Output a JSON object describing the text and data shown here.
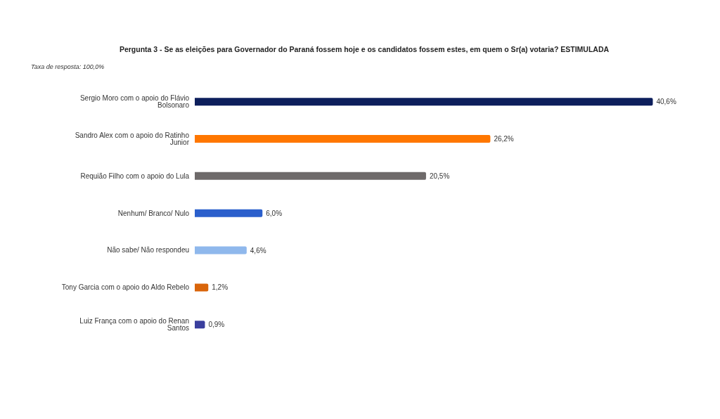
{
  "chart_data": {
    "type": "bar",
    "orientation": "horizontal",
    "title": "Pergunta 3 - Se as eleições para Governador do Paraná fossem hoje e os candidatos fossem estes, em quem o Sr(a) votaria? ESTIMULADA",
    "annotations": [
      "Taxa de resposta: 100,0%"
    ],
    "categories": [
      "Sergio Moro com o apoio do Flávio Bolsonaro",
      "Sandro Alex com o apoio do Ratinho Junior",
      "Requião Filho com o apoio do Lula",
      "Nenhum/ Branco/ Nulo",
      "Não sabe/ Não respondeu",
      "Tony Garcia com o apoio do Aldo Rebelo",
      "Luiz França com o apoio do Renan Santos"
    ],
    "values": [
      40.6,
      26.2,
      20.5,
      6.0,
      4.6,
      1.2,
      0.9
    ],
    "value_labels": [
      "40,6%",
      "26,2%",
      "20,5%",
      "6,0%",
      "4,6%",
      "1,2%",
      "0,9%"
    ],
    "colors": [
      "#0d1f5c",
      "#ff7700",
      "#6e6a6a",
      "#2b5fcc",
      "#8fb8ec",
      "#d9650a",
      "#3a3f9e"
    ]
  }
}
